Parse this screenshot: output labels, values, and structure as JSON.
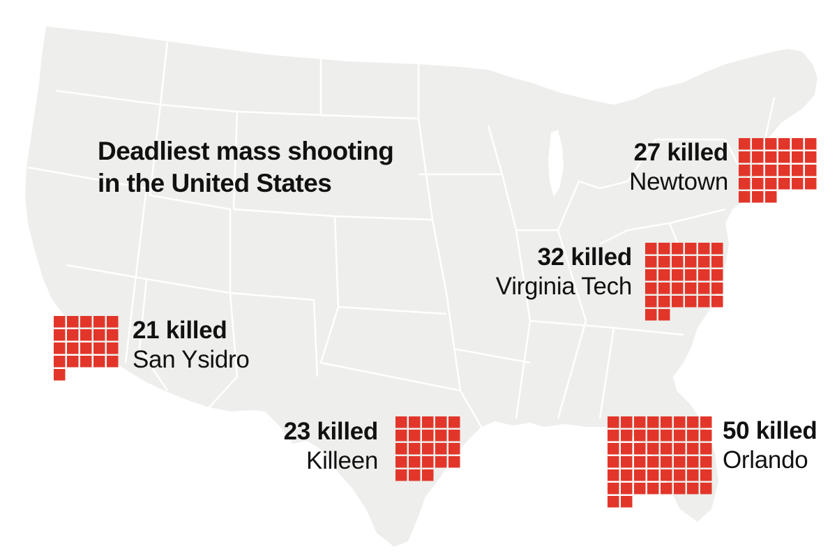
{
  "map": {
    "title_line1": "Deadliest mass shooting",
    "title_line2": "in the United States",
    "land_color": "#eeeeec",
    "border_color": "#ffffff",
    "square_color": "#e2362a"
  },
  "incidents": [
    {
      "id": "newtown",
      "killed": 27,
      "killed_label": "27 killed",
      "place": "Newtown"
    },
    {
      "id": "virginia-tech",
      "killed": 32,
      "killed_label": "32 killed",
      "place": "Virginia Tech"
    },
    {
      "id": "san-ysidro",
      "killed": 21,
      "killed_label": "21 killed",
      "place": "San Ysidro"
    },
    {
      "id": "killeen",
      "killed": 23,
      "killed_label": "23 killed",
      "place": "Killeen"
    },
    {
      "id": "orlando",
      "killed": 50,
      "killed_label": "50 killed",
      "place": "Orlando"
    }
  ]
}
